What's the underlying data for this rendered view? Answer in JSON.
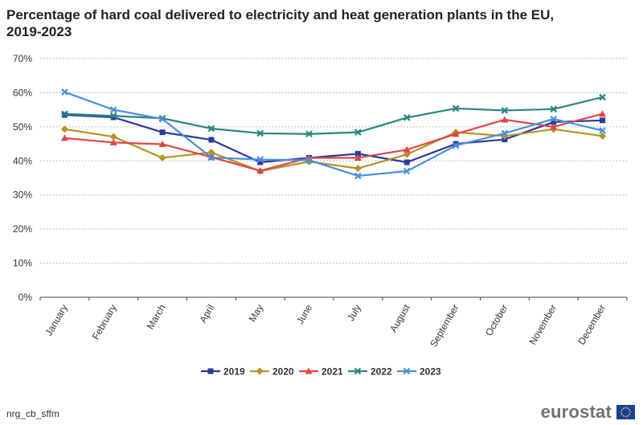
{
  "chart_data": {
    "type": "line",
    "title": "Percentage of hard coal delivered to electricity and heat generation plants in the EU, 2019-2023",
    "categories": [
      "January",
      "February",
      "March",
      "April",
      "May",
      "June",
      "July",
      "August",
      "September",
      "October",
      "November",
      "December"
    ],
    "ylim": [
      0,
      70
    ],
    "yticks": [
      "0%",
      "10%",
      "20%",
      "30%",
      "40%",
      "50%",
      "60%",
      "70%"
    ],
    "ytick_values": [
      0,
      10,
      20,
      30,
      40,
      50,
      60,
      70
    ],
    "grid": true,
    "legend_position": "bottom",
    "series": [
      {
        "name": "2019",
        "color": "#2b3a9e",
        "marker": "square",
        "values": [
          53.5,
          52.8,
          48.4,
          46.2,
          39.6,
          40.9,
          42.1,
          39.6,
          45.0,
          46.3,
          51.4,
          51.9
        ]
      },
      {
        "name": "2020",
        "color": "#b5941f",
        "marker": "diamond",
        "values": [
          49.3,
          47.1,
          40.9,
          42.5,
          37.0,
          39.8,
          37.8,
          41.9,
          48.4,
          47.3,
          49.3,
          47.3
        ]
      },
      {
        "name": "2021",
        "color": "#e04644",
        "marker": "triangle",
        "values": [
          46.7,
          45.4,
          44.9,
          41.1,
          37.1,
          40.9,
          40.9,
          43.3,
          47.9,
          52.1,
          50.0,
          53.8
        ]
      },
      {
        "name": "2022",
        "color": "#26877f",
        "marker": "x",
        "values": [
          53.8,
          53.2,
          52.5,
          49.5,
          48.1,
          47.9,
          48.4,
          52.7,
          55.4,
          54.8,
          55.2,
          58.7
        ]
      },
      {
        "name": "2023",
        "color": "#4a8fdd",
        "marker": "x",
        "values": [
          60.2,
          55.0,
          52.3,
          41.0,
          40.4,
          40.2,
          35.6,
          37.0,
          44.5,
          48.1,
          52.3,
          48.9
        ]
      }
    ]
  },
  "footer": {
    "source_code": "nrg_cb_sffm",
    "logo_text": "eurostat"
  }
}
